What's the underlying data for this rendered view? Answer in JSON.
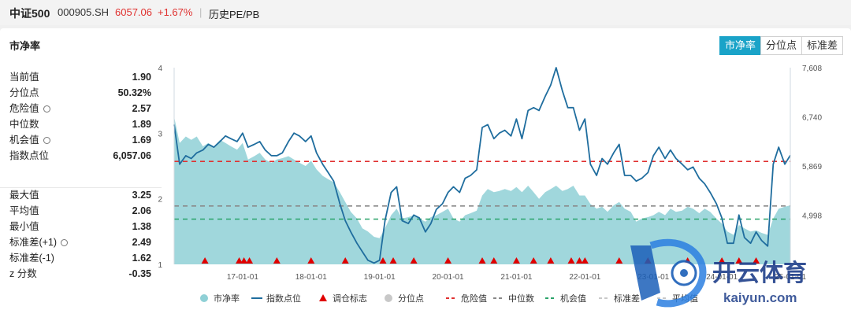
{
  "header": {
    "name": "中证500",
    "code": "000905.SH",
    "price": "6057.06",
    "change": "+1.67%",
    "separator": "|",
    "link": "历史PE/PB"
  },
  "panel": {
    "title": "市净率",
    "tabs": [
      {
        "label": "市净率",
        "active": true
      },
      {
        "label": "分位点",
        "active": false
      },
      {
        "label": "标准差",
        "active": false
      }
    ]
  },
  "stats_current": [
    {
      "label": "当前值",
      "value": "1.90",
      "gear": false
    },
    {
      "label": "分位点",
      "value": "50.32%",
      "gear": false
    },
    {
      "label": "危险值",
      "value": "2.57",
      "gear": true
    },
    {
      "label": "中位数",
      "value": "1.89",
      "gear": false
    },
    {
      "label": "机会值",
      "value": "1.69",
      "gear": true
    },
    {
      "label": "指数点位",
      "value": "6,057.06",
      "gear": false
    }
  ],
  "stats_hist": [
    {
      "label": "最大值",
      "value": "3.25",
      "gear": false
    },
    {
      "label": "平均值",
      "value": "2.06",
      "gear": false
    },
    {
      "label": "最小值",
      "value": "1.38",
      "gear": false
    },
    {
      "label": "标准差(+1)",
      "value": "2.49",
      "gear": true
    },
    {
      "label": "标准差(-1)",
      "value": "1.62",
      "gear": false
    },
    {
      "label": "z 分数",
      "value": "-0.35",
      "gear": false
    }
  ],
  "watermark": {
    "brand": "开云体育",
    "domain": "kaiyun.com"
  },
  "chart_data": {
    "type": "line",
    "x_tick_labels": [
      "17-01-01",
      "18-01-01",
      "19-01-01",
      "20-01-01",
      "21-01-01",
      "22-01-01",
      "23-01-01",
      "24-01-01",
      "25-01-01"
    ],
    "left_axis": {
      "ticks": [
        "1",
        "2",
        "3",
        "4"
      ],
      "range": [
        1,
        4
      ]
    },
    "right_axis": {
      "ticks": [
        "4,998",
        "5,869",
        "6,740",
        "7,608"
      ],
      "range": [
        4127,
        7608
      ]
    },
    "reference_lines": [
      {
        "name": "危险值",
        "value": 2.57,
        "color": "#e03030",
        "style": "dashed"
      },
      {
        "name": "中位数",
        "value": 1.89,
        "color": "#888888",
        "style": "dashed"
      },
      {
        "name": "机会值",
        "value": 1.69,
        "color": "#2aa36a",
        "style": "dashed"
      }
    ],
    "series": [
      {
        "name": "市净率",
        "axis": "left",
        "type": "area",
        "color": "#8fd0d6",
        "x": [
          2016.0,
          2016.08,
          2016.17,
          2016.25,
          2016.33,
          2016.42,
          2016.5,
          2016.58,
          2016.67,
          2016.75,
          2016.83,
          2016.92,
          2017.0,
          2017.08,
          2017.17,
          2017.25,
          2017.33,
          2017.42,
          2017.5,
          2017.58,
          2017.67,
          2017.75,
          2017.83,
          2017.92,
          2018.0,
          2018.08,
          2018.17,
          2018.25,
          2018.33,
          2018.42,
          2018.5,
          2018.58,
          2018.67,
          2018.75,
          2018.83,
          2018.92,
          2019.0,
          2019.08,
          2019.17,
          2019.25,
          2019.33,
          2019.42,
          2019.5,
          2019.58,
          2019.67,
          2019.75,
          2019.83,
          2019.92,
          2020.0,
          2020.08,
          2020.17,
          2020.25,
          2020.33,
          2020.42,
          2020.5,
          2020.58,
          2020.67,
          2020.75,
          2020.83,
          2020.92,
          2021.0,
          2021.08,
          2021.17,
          2021.25,
          2021.33,
          2021.42,
          2021.5,
          2021.58,
          2021.67,
          2021.75,
          2021.83,
          2021.92,
          2022.0,
          2022.08,
          2022.17,
          2022.25,
          2022.33,
          2022.42,
          2022.5,
          2022.58,
          2022.67,
          2022.75,
          2022.83,
          2022.92,
          2023.0,
          2023.08,
          2023.17,
          2023.25,
          2023.33,
          2023.42,
          2023.5,
          2023.58,
          2023.67,
          2023.75,
          2023.83,
          2023.92,
          2024.0,
          2024.08,
          2024.17,
          2024.25,
          2024.33,
          2024.42,
          2024.5,
          2024.58,
          2024.67,
          2024.75,
          2024.83,
          2024.92,
          2025.0
        ],
        "values": [
          3.25,
          2.85,
          2.95,
          2.9,
          2.95,
          2.8,
          2.85,
          2.8,
          2.9,
          2.85,
          2.8,
          2.75,
          2.85,
          2.6,
          2.65,
          2.7,
          2.6,
          2.55,
          2.6,
          2.62,
          2.65,
          2.6,
          2.55,
          2.5,
          2.58,
          2.45,
          2.35,
          2.3,
          2.25,
          2.1,
          1.95,
          1.8,
          1.7,
          1.55,
          1.5,
          1.42,
          1.4,
          1.55,
          1.75,
          1.85,
          1.7,
          1.72,
          1.75,
          1.7,
          1.65,
          1.72,
          1.75,
          1.8,
          1.85,
          1.7,
          1.65,
          1.75,
          1.78,
          1.82,
          2.05,
          2.15,
          2.1,
          2.12,
          2.15,
          2.12,
          2.18,
          2.1,
          2.2,
          2.1,
          2.0,
          2.1,
          2.15,
          2.2,
          2.12,
          2.15,
          2.2,
          2.05,
          2.05,
          1.92,
          1.85,
          1.88,
          1.8,
          1.9,
          1.95,
          1.85,
          1.8,
          1.65,
          1.7,
          1.72,
          1.75,
          1.8,
          1.75,
          1.85,
          1.8,
          1.82,
          1.88,
          1.85,
          1.78,
          1.85,
          1.8,
          1.7,
          1.62,
          1.5,
          1.45,
          1.6,
          1.55,
          1.5,
          1.52,
          1.48,
          1.45,
          1.7,
          1.85,
          1.88,
          1.9
        ]
      },
      {
        "name": "指数点位",
        "axis": "right",
        "type": "line",
        "color": "#1f6d9e",
        "x": [
          2016.0,
          2016.08,
          2016.17,
          2016.25,
          2016.33,
          2016.42,
          2016.5,
          2016.58,
          2016.67,
          2016.75,
          2016.83,
          2016.92,
          2017.0,
          2017.08,
          2017.17,
          2017.25,
          2017.33,
          2017.42,
          2017.5,
          2017.58,
          2017.67,
          2017.75,
          2017.83,
          2017.92,
          2018.0,
          2018.08,
          2018.17,
          2018.25,
          2018.33,
          2018.42,
          2018.5,
          2018.58,
          2018.67,
          2018.75,
          2018.83,
          2018.92,
          2019.0,
          2019.08,
          2019.17,
          2019.25,
          2019.33,
          2019.42,
          2019.5,
          2019.58,
          2019.67,
          2019.75,
          2019.83,
          2019.92,
          2020.0,
          2020.08,
          2020.17,
          2020.25,
          2020.33,
          2020.42,
          2020.5,
          2020.58,
          2020.67,
          2020.75,
          2020.83,
          2020.92,
          2021.0,
          2021.08,
          2021.17,
          2021.25,
          2021.33,
          2021.42,
          2021.5,
          2021.58,
          2021.67,
          2021.75,
          2021.83,
          2021.92,
          2022.0,
          2022.08,
          2022.17,
          2022.25,
          2022.33,
          2022.42,
          2022.5,
          2022.58,
          2022.67,
          2022.75,
          2022.83,
          2022.92,
          2023.0,
          2023.08,
          2023.17,
          2023.25,
          2023.33,
          2023.42,
          2023.5,
          2023.58,
          2023.67,
          2023.75,
          2023.83,
          2023.92,
          2024.0,
          2024.08,
          2024.17,
          2024.25,
          2024.33,
          2024.42,
          2024.5,
          2024.58,
          2024.67,
          2024.75,
          2024.83,
          2024.92,
          2025.0
        ],
        "values": [
          6600,
          5900,
          6050,
          6000,
          6100,
          6150,
          6250,
          6200,
          6300,
          6400,
          6350,
          6300,
          6450,
          6200,
          6250,
          6300,
          6150,
          6050,
          6050,
          6100,
          6300,
          6450,
          6400,
          6300,
          6400,
          6100,
          5900,
          5750,
          5600,
          5200,
          4900,
          4700,
          4500,
          4350,
          4200,
          4150,
          4200,
          4900,
          5400,
          5500,
          4900,
          4850,
          5000,
          4950,
          4700,
          4850,
          5100,
          5200,
          5400,
          5500,
          5400,
          5650,
          5700,
          5800,
          6550,
          6600,
          6350,
          6450,
          6500,
          6400,
          6700,
          6350,
          6850,
          6900,
          6850,
          7100,
          7300,
          7608,
          7200,
          6900,
          6900,
          6500,
          6700,
          5900,
          5700,
          6000,
          5900,
          6100,
          6250,
          5700,
          5700,
          5600,
          5650,
          5750,
          6050,
          6200,
          6000,
          6150,
          6000,
          5900,
          5800,
          5850,
          5650,
          5550,
          5400,
          5200,
          4950,
          4500,
          4500,
          5000,
          4600,
          4500,
          4700,
          4550,
          4450,
          5900,
          6200,
          5900,
          6057
        ]
      },
      {
        "name": "调仓标志",
        "type": "marker",
        "color": "#e00000",
        "x": [
          2016.45,
          2016.95,
          2017.02,
          2017.1,
          2017.5,
          2018.0,
          2018.5,
          2019.05,
          2019.2,
          2019.5,
          2020.0,
          2020.5,
          2020.67,
          2021.0,
          2021.25,
          2021.5,
          2021.8,
          2021.92,
          2022.0,
          2022.5,
          2022.92,
          2023.5,
          2024.0,
          2024.25,
          2024.5
        ]
      },
      {
        "name": "分位点",
        "type": "legend-only",
        "color": "#c8c8c8"
      }
    ],
    "legend": [
      {
        "name": "市净率",
        "marker": "circle",
        "color": "#8fd0d6"
      },
      {
        "name": "指数点位",
        "marker": "line",
        "color": "#1f6d9e"
      },
      {
        "name": "调仓标志",
        "marker": "triangle",
        "color": "#e00000"
      },
      {
        "name": "分位点",
        "marker": "circle",
        "color": "#c8c8c8"
      },
      {
        "name": "危险值",
        "marker": "dash",
        "color": "#e03030"
      },
      {
        "name": "中位数",
        "marker": "dash",
        "color": "#888888"
      },
      {
        "name": "机会值",
        "marker": "dash",
        "color": "#2aa36a"
      },
      {
        "name": "标准差",
        "marker": "dash",
        "color": "#c8c8c8"
      },
      {
        "name": "平均值",
        "marker": "dash",
        "color": "#c8c8c8"
      }
    ],
    "legend_position": "bottom",
    "grid": false
  }
}
